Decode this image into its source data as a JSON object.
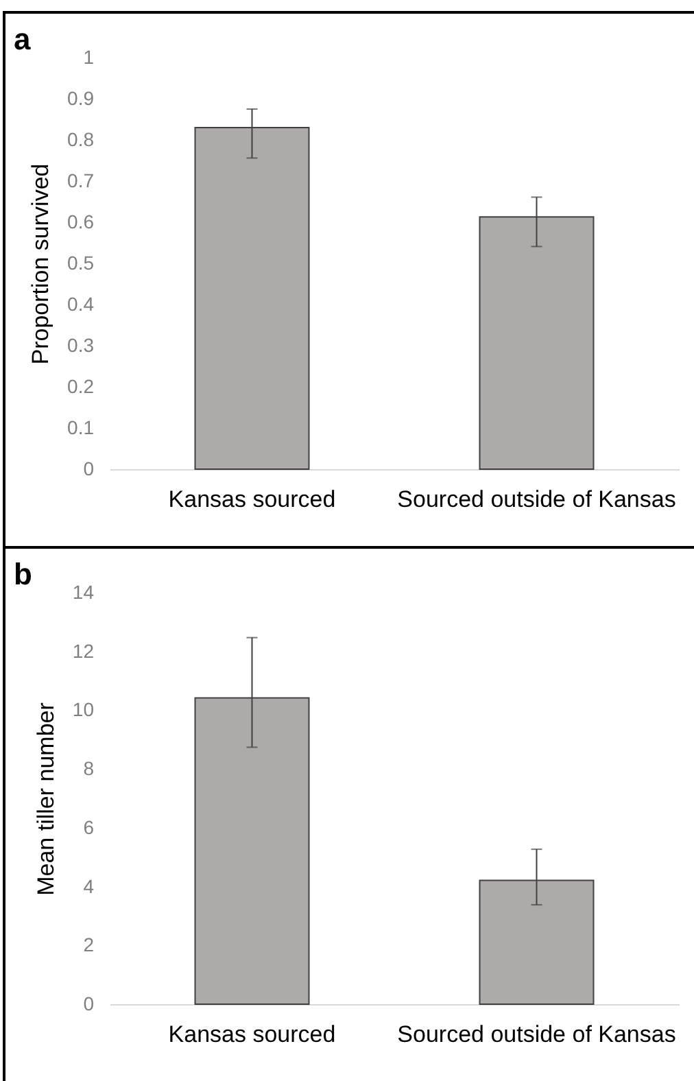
{
  "chart_data": [
    {
      "type": "bar",
      "title": "a",
      "ylabel": "Proportion survived",
      "categories": [
        "Kansas sourced",
        "Sourced outside of Kansas"
      ],
      "values": [
        0.83,
        0.613
      ],
      "errors": [
        [
          0.756,
          0.875
        ],
        [
          0.541,
          0.661
        ]
      ],
      "color": "#aeaaaa",
      "ylim": [
        0,
        1
      ],
      "yticks": [
        0,
        0.1,
        0.2,
        0.3,
        0.4,
        0.5,
        0.6,
        0.7,
        0.8,
        0.9,
        1
      ],
      "grid": false
    },
    {
      "type": "bar",
      "title": "b",
      "ylabel": "Mean tiller number",
      "categories": [
        "Kansas sourced",
        "Sourced outside of Kansas"
      ],
      "values": [
        10.42,
        4.21
      ],
      "errors": [
        [
          8.74,
          12.47
        ],
        [
          3.38,
          5.27
        ]
      ],
      "color": "#aeaaaa",
      "ylim": [
        0,
        14
      ],
      "yticks": [
        0,
        2,
        4,
        6,
        8,
        10,
        12,
        14
      ],
      "grid": false
    }
  ]
}
